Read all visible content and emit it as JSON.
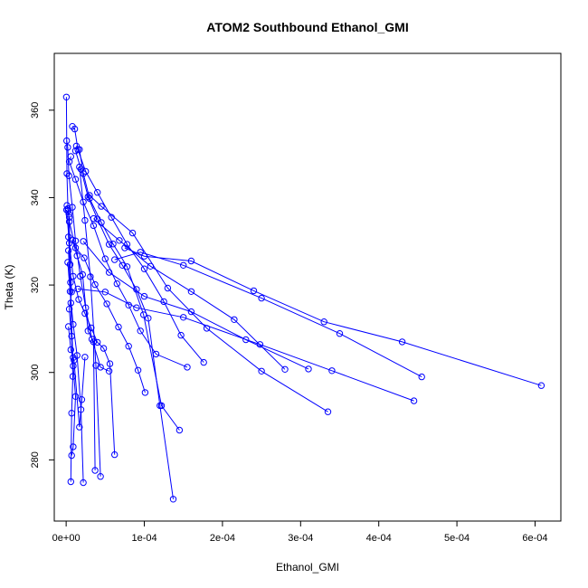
{
  "chart_data": {
    "type": "line",
    "title": "ATOM2 Southbound Ethanol_GMI",
    "xlabel": "Ethanol_GMI",
    "ylabel": "Theta (K)",
    "xlim": [
      -1.52e-05,
      0.000633
    ],
    "ylim": [
      266,
      373
    ],
    "x_ticks": [
      0,
      0.0001,
      0.0002,
      0.0003,
      0.0004,
      0.0005,
      0.0006
    ],
    "x_tick_labels": [
      "0e+00",
      "1e-04",
      "2e-04",
      "3e-04",
      "4e-04",
      "5e-04",
      "6e-04"
    ],
    "y_ticks": [
      280,
      300,
      320,
      340,
      360
    ],
    "y_tick_labels": [
      "280",
      "300",
      "320",
      "340",
      "360"
    ],
    "grid": false,
    "legend": "none",
    "series_color": "#0000ff",
    "marker": "open-circle",
    "series": [
      {
        "x": [
          3e-07,
          1e-06,
          2.3e-06,
          3.5e-06,
          3e-06,
          5e-06,
          7e-06,
          4e-06,
          9e-06
        ],
        "y": [
          363,
          345.5,
          337.5,
          336.2,
          331,
          324.7,
          318.4,
          314.5,
          303.4
        ]
      },
      {
        "x": [
          7e-07,
          2e-06,
          3.5e-06,
          8e-06,
          1.2e-05,
          1.8e-05,
          2.5e-05,
          3.3e-05,
          4.4e-05,
          5.5e-05
        ],
        "y": [
          353,
          351.5,
          345,
          337.8,
          330.1,
          322,
          314.8,
          307.6,
          301.2,
          300.3
        ]
      },
      {
        "x": [
          6e-06,
          4e-06,
          1.2e-05,
          2.2e-05,
          3.5e-05,
          5e-05,
          6.5e-05,
          8e-05,
          9.5e-05,
          0.000115,
          0.000155
        ],
        "y": [
          349.4,
          348.2,
          344.2,
          339,
          333.6,
          326,
          320.3,
          315.4,
          309.5,
          304.2,
          301.2
        ]
      },
      {
        "x": [
          8e-06,
          1.1e-05,
          1.5e-05,
          2.5e-05,
          4e-05,
          5.8e-05,
          7.8e-05,
          0.0001,
          0.000125,
          0.000147,
          0.000176
        ],
        "y": [
          356.3,
          355.7,
          351,
          346,
          341.2,
          335.5,
          329.3,
          323.7,
          316.2,
          308.5,
          302.3
        ]
      },
      {
        "x": [
          1.3e-05,
          1.7e-05,
          2.2e-05,
          3e-05,
          4.5e-05,
          6e-05,
          7.8e-05,
          9.9e-05,
          0.000122,
          0.000145
        ],
        "y": [
          351.8,
          351,
          345.5,
          339.8,
          334.3,
          329.4,
          324.2,
          313.2,
          292.4,
          286.8
        ]
      },
      {
        "x": [
          1.2e-05,
          1.9e-05,
          2.8e-05,
          4e-05,
          5.5e-05,
          7.2e-05,
          9e-05,
          0.000105,
          0.00012,
          0.000137
        ],
        "y": [
          350.7,
          346.5,
          340.2,
          335.1,
          329.3,
          324.5,
          319,
          312.4,
          292.4,
          271
        ]
      },
      {
        "x": [
          1e-06,
          2.5e-06,
          4e-06,
          1.2e-05,
          2.3e-05,
          3.7e-05,
          5.2e-05,
          6.7e-05,
          8e-05,
          9.2e-05,
          0.000101
        ],
        "y": [
          338.2,
          337,
          334.5,
          328.5,
          326.2,
          320.1,
          315.7,
          310.4,
          306,
          300.5,
          295.4
        ]
      },
      {
        "x": [
          5e-07,
          4e-06,
          9e-06,
          1.6e-05,
          2.4e-05,
          3.2e-05,
          4e-05,
          4.8e-05,
          5.6e-05,
          6.2e-05
        ],
        "y": [
          337.2,
          329.6,
          322,
          316.7,
          313.5,
          310.2,
          306.9,
          305.5,
          302,
          281.2
        ]
      },
      {
        "x": [
          2e-06,
          5e-06,
          9e-06,
          1.4e-05,
          1.9e-05,
          2.2e-05
        ],
        "y": [
          325.2,
          318.5,
          311,
          303.9,
          291.5,
          274.8
        ]
      },
      {
        "x": [
          4e-06,
          5.5e-06,
          7e-06,
          8.5e-06,
          7e-06,
          6e-06
        ],
        "y": [
          335.5,
          320.6,
          308.3,
          299.1,
          290.7,
          275
        ]
      },
      {
        "x": [
          3e-06,
          6e-06,
          9e-06,
          1.2e-05,
          9e-06,
          7e-06
        ],
        "y": [
          327.9,
          315.9,
          301.5,
          294.5,
          283,
          281
        ]
      },
      {
        "x": [
          8e-06,
          1.4e-05,
          2.1e-05,
          2.8e-05,
          3.5e-05,
          3.7e-05
        ],
        "y": [
          330.3,
          326.7,
          322.4,
          309.5,
          307,
          277.6
        ]
      },
      {
        "x": [
          1.7e-05,
          2.4e-05,
          3.1e-05,
          3.8e-05,
          4.4e-05
        ],
        "y": [
          347,
          334.8,
          321.9,
          301.6,
          276.2
        ]
      },
      {
        "x": [
          3e-06,
          6e-06,
          1e-05,
          1.7e-05,
          2e-05,
          2.4e-05
        ],
        "y": [
          310.5,
          305.2,
          302.8,
          287.5,
          293.8,
          303.5
        ]
      },
      {
        "x": [
          3e-05,
          4.5e-05,
          8.5e-05,
          0.00013,
          0.00018,
          0.00025,
          0.000335
        ],
        "y": [
          340.5,
          338,
          331.9,
          319.3,
          310.1,
          300.3,
          291
        ]
      },
      {
        "x": [
          3.5e-05,
          6.8e-05,
          0.000108,
          0.00016,
          0.000215,
          0.00028
        ],
        "y": [
          335.2,
          330.2,
          324.3,
          318.5,
          312.1,
          300.7
        ]
      },
      {
        "x": [
          2.2e-05,
          5.5e-05,
          0.0001,
          0.00016,
          0.00023,
          0.00031
        ],
        "y": [
          330,
          322.9,
          317.4,
          313.9,
          307.5,
          300.8
        ]
      },
      {
        "x": [
          1.5e-05,
          5e-05,
          9e-05,
          0.00015,
          0.000248,
          0.00034,
          0.000445
        ],
        "y": [
          319.1,
          318.4,
          314.8,
          312.6,
          306.4,
          300.4,
          293.5
        ]
      },
      {
        "x": [
          6.2e-05,
          9.5e-05,
          0.00015,
          0.00025,
          0.00035,
          0.000455
        ],
        "y": [
          325.8,
          327.5,
          324.5,
          317,
          308.9,
          299
        ]
      },
      {
        "x": [
          7.5e-05,
          0.0001,
          0.00016,
          0.00024,
          0.00033,
          0.00043,
          0.000608
        ],
        "y": [
          328.5,
          326.6,
          325.5,
          318.7,
          311.6,
          307,
          297
        ]
      }
    ]
  }
}
